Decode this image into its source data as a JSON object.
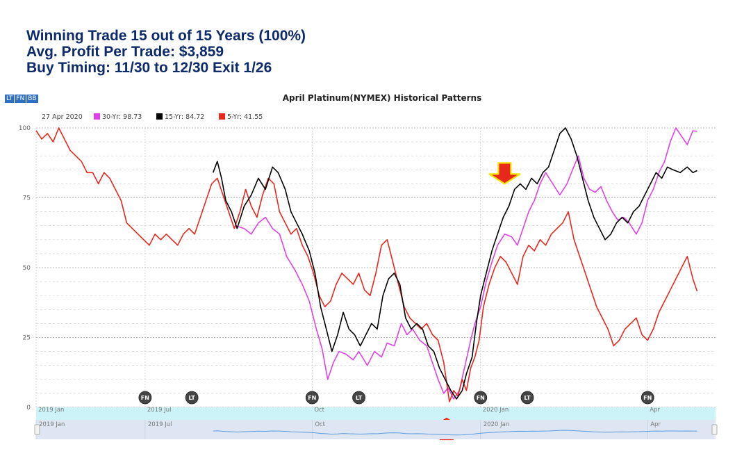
{
  "headline": {
    "line1": "Winning Trade 15 out of 15 Years (100%)",
    "line2": "Avg. Profit Per Trade: $3,859",
    "line3": "Buy Timing: 11/30 to 12/30 Exit 1/26"
  },
  "toolbar": {
    "lt": "LT",
    "fn": "FN",
    "bb": "BB"
  },
  "chart_data": {
    "type": "line",
    "title": "April Platinum(NYMEX) Historical Patterns",
    "date_label": "27 Apr 2020",
    "ylim": [
      0,
      100
    ],
    "yticks": [
      0,
      25,
      50,
      75,
      100
    ],
    "grid": true,
    "legend_position": "top-left",
    "x_domain": [
      0,
      480
    ],
    "x_ticks": [
      {
        "label": "2019 Jan",
        "x": 0
      },
      {
        "label": "2019 Jul",
        "x": 77
      },
      {
        "label": "Oct",
        "x": 195
      },
      {
        "label": "2020 Jan",
        "x": 314
      },
      {
        "label": "Apr",
        "x": 432
      }
    ],
    "navigator_ticks": [
      "2019 Jan",
      "2019 Jul",
      "Oct",
      "2020 Jan",
      "Apr"
    ],
    "markers": [
      {
        "label": "FN",
        "x": 77
      },
      {
        "label": "LT",
        "x": 110
      },
      {
        "label": "FN",
        "x": 195
      },
      {
        "label": "LT",
        "x": 228
      },
      {
        "label": "FN",
        "x": 314
      },
      {
        "label": "LT",
        "x": 347
      },
      {
        "label": "FN",
        "x": 432
      }
    ],
    "arrows": [
      {
        "direction": "down",
        "x": 331,
        "y": 80
      },
      {
        "direction": "up",
        "x": 290,
        "y": -4
      }
    ],
    "colors": {
      "30-Yr": "#e040e8",
      "15-Yr": "#000000",
      "5-Yr": "#e8271d",
      "navigator": "#5a9be0"
    },
    "series": [
      {
        "name": "30-Yr",
        "value": "98.73",
        "color": "#e040e8",
        "points": [
          [
            141,
            65
          ],
          [
            147,
            64
          ],
          [
            152,
            62
          ],
          [
            157,
            66
          ],
          [
            162,
            68
          ],
          [
            167,
            64
          ],
          [
            172,
            62
          ],
          [
            177,
            54
          ],
          [
            183,
            49
          ],
          [
            188,
            44
          ],
          [
            193,
            38
          ],
          [
            198,
            28
          ],
          [
            202,
            21
          ],
          [
            206,
            10
          ],
          [
            210,
            16
          ],
          [
            214,
            20
          ],
          [
            219,
            19
          ],
          [
            224,
            17
          ],
          [
            228,
            20
          ],
          [
            234,
            15
          ],
          [
            239,
            20
          ],
          [
            244,
            18
          ],
          [
            248,
            23
          ],
          [
            253,
            22
          ],
          [
            258,
            30
          ],
          [
            262,
            26
          ],
          [
            266,
            28
          ],
          [
            271,
            24
          ],
          [
            276,
            22
          ],
          [
            280,
            16
          ],
          [
            284,
            10
          ],
          [
            288,
            5
          ],
          [
            291,
            7
          ],
          [
            295,
            3
          ],
          [
            299,
            6
          ],
          [
            303,
            15
          ],
          [
            307,
            24
          ],
          [
            310,
            30
          ],
          [
            314,
            36
          ],
          [
            318,
            45
          ],
          [
            322,
            52
          ],
          [
            326,
            58
          ],
          [
            331,
            62
          ],
          [
            336,
            61
          ],
          [
            340,
            58
          ],
          [
            344,
            64
          ],
          [
            348,
            70
          ],
          [
            352,
            74
          ],
          [
            356,
            80
          ],
          [
            360,
            84
          ],
          [
            365,
            80
          ],
          [
            370,
            76
          ],
          [
            375,
            80
          ],
          [
            379,
            85
          ],
          [
            383,
            90
          ],
          [
            387,
            82
          ],
          [
            391,
            78
          ],
          [
            395,
            77
          ],
          [
            399,
            79
          ],
          [
            403,
            74
          ],
          [
            407,
            70
          ],
          [
            411,
            67
          ],
          [
            415,
            68
          ],
          [
            419,
            66
          ],
          [
            424,
            62
          ],
          [
            428,
            66
          ],
          [
            432,
            74
          ],
          [
            436,
            78
          ],
          [
            440,
            84
          ],
          [
            444,
            88
          ],
          [
            448,
            95
          ],
          [
            452,
            100
          ],
          [
            456,
            97
          ],
          [
            460,
            94
          ],
          [
            464,
            99
          ],
          [
            467,
            98.73
          ]
        ]
      },
      {
        "name": "15-Yr",
        "value": "84.72",
        "color": "#000000",
        "points": [
          [
            125,
            84
          ],
          [
            128,
            88
          ],
          [
            131,
            82
          ],
          [
            134,
            74
          ],
          [
            138,
            70
          ],
          [
            142,
            64
          ],
          [
            147,
            72
          ],
          [
            152,
            76
          ],
          [
            157,
            82
          ],
          [
            162,
            78
          ],
          [
            167,
            86
          ],
          [
            171,
            84
          ],
          [
            176,
            78
          ],
          [
            180,
            70
          ],
          [
            184,
            66
          ],
          [
            188,
            62
          ],
          [
            193,
            56
          ],
          [
            197,
            48
          ],
          [
            201,
            36
          ],
          [
            205,
            28
          ],
          [
            209,
            20
          ],
          [
            213,
            26
          ],
          [
            217,
            34
          ],
          [
            221,
            28
          ],
          [
            225,
            26
          ],
          [
            229,
            22
          ],
          [
            233,
            26
          ],
          [
            237,
            30
          ],
          [
            241,
            28
          ],
          [
            245,
            40
          ],
          [
            249,
            46
          ],
          [
            253,
            48
          ],
          [
            257,
            44
          ],
          [
            261,
            32
          ],
          [
            265,
            28
          ],
          [
            269,
            30
          ],
          [
            273,
            28
          ],
          [
            277,
            22
          ],
          [
            281,
            20
          ],
          [
            285,
            14
          ],
          [
            289,
            10
          ],
          [
            293,
            6
          ],
          [
            297,
            3
          ],
          [
            301,
            6
          ],
          [
            304,
            12
          ],
          [
            308,
            18
          ],
          [
            311,
            30
          ],
          [
            314,
            40
          ],
          [
            318,
            48
          ],
          [
            322,
            56
          ],
          [
            326,
            62
          ],
          [
            330,
            68
          ],
          [
            334,
            72
          ],
          [
            338,
            78
          ],
          [
            342,
            80
          ],
          [
            346,
            78
          ],
          [
            350,
            82
          ],
          [
            354,
            80
          ],
          [
            358,
            84
          ],
          [
            362,
            86
          ],
          [
            366,
            92
          ],
          [
            370,
            98
          ],
          [
            374,
            100
          ],
          [
            378,
            96
          ],
          [
            382,
            90
          ],
          [
            386,
            82
          ],
          [
            390,
            74
          ],
          [
            394,
            68
          ],
          [
            398,
            64
          ],
          [
            402,
            60
          ],
          [
            406,
            62
          ],
          [
            410,
            66
          ],
          [
            414,
            68
          ],
          [
            418,
            66
          ],
          [
            422,
            70
          ],
          [
            426,
            72
          ],
          [
            430,
            76
          ],
          [
            434,
            80
          ],
          [
            438,
            84
          ],
          [
            442,
            82
          ],
          [
            446,
            86
          ],
          [
            450,
            85
          ],
          [
            455,
            84
          ],
          [
            460,
            86
          ],
          [
            464,
            84
          ],
          [
            467,
            84.72
          ]
        ]
      },
      {
        "name": "5-Yr",
        "value": "41.55",
        "color": "#e8271d",
        "points": [
          [
            0,
            99
          ],
          [
            4,
            96
          ],
          [
            8,
            98
          ],
          [
            12,
            95
          ],
          [
            16,
            100
          ],
          [
            20,
            96
          ],
          [
            24,
            92
          ],
          [
            28,
            90
          ],
          [
            32,
            88
          ],
          [
            36,
            84
          ],
          [
            40,
            84
          ],
          [
            44,
            80
          ],
          [
            48,
            84
          ],
          [
            52,
            82
          ],
          [
            56,
            78
          ],
          [
            60,
            74
          ],
          [
            64,
            66
          ],
          [
            68,
            64
          ],
          [
            72,
            62
          ],
          [
            76,
            60
          ],
          [
            80,
            58
          ],
          [
            84,
            62
          ],
          [
            88,
            60
          ],
          [
            92,
            62
          ],
          [
            96,
            60
          ],
          [
            100,
            58
          ],
          [
            104,
            62
          ],
          [
            108,
            64
          ],
          [
            112,
            62
          ],
          [
            116,
            68
          ],
          [
            120,
            74
          ],
          [
            124,
            80
          ],
          [
            128,
            82
          ],
          [
            132,
            76
          ],
          [
            136,
            70
          ],
          [
            140,
            64
          ],
          [
            144,
            70
          ],
          [
            148,
            78
          ],
          [
            152,
            72
          ],
          [
            156,
            68
          ],
          [
            160,
            76
          ],
          [
            164,
            82
          ],
          [
            168,
            80
          ],
          [
            172,
            70
          ],
          [
            176,
            66
          ],
          [
            180,
            62
          ],
          [
            184,
            64
          ],
          [
            188,
            58
          ],
          [
            192,
            54
          ],
          [
            196,
            48
          ],
          [
            200,
            40
          ],
          [
            204,
            36
          ],
          [
            208,
            38
          ],
          [
            212,
            44
          ],
          [
            216,
            48
          ],
          [
            220,
            46
          ],
          [
            224,
            44
          ],
          [
            228,
            48
          ],
          [
            232,
            42
          ],
          [
            236,
            40
          ],
          [
            240,
            48
          ],
          [
            244,
            58
          ],
          [
            248,
            60
          ],
          [
            252,
            52
          ],
          [
            256,
            44
          ],
          [
            260,
            36
          ],
          [
            264,
            32
          ],
          [
            268,
            30
          ],
          [
            272,
            28
          ],
          [
            276,
            30
          ],
          [
            280,
            26
          ],
          [
            284,
            24
          ],
          [
            288,
            16
          ],
          [
            292,
            2
          ],
          [
            295,
            6
          ],
          [
            298,
            4
          ],
          [
            301,
            10
          ],
          [
            304,
            6
          ],
          [
            307,
            14
          ],
          [
            310,
            18
          ],
          [
            313,
            24
          ],
          [
            316,
            36
          ],
          [
            320,
            44
          ],
          [
            324,
            50
          ],
          [
            328,
            54
          ],
          [
            332,
            52
          ],
          [
            336,
            48
          ],
          [
            340,
            44
          ],
          [
            344,
            54
          ],
          [
            348,
            58
          ],
          [
            352,
            56
          ],
          [
            356,
            60
          ],
          [
            360,
            58
          ],
          [
            364,
            62
          ],
          [
            368,
            64
          ],
          [
            372,
            66
          ],
          [
            376,
            70
          ],
          [
            380,
            60
          ],
          [
            384,
            54
          ],
          [
            388,
            48
          ],
          [
            392,
            42
          ],
          [
            396,
            36
          ],
          [
            400,
            32
          ],
          [
            404,
            28
          ],
          [
            408,
            22
          ],
          [
            412,
            24
          ],
          [
            416,
            28
          ],
          [
            420,
            30
          ],
          [
            424,
            32
          ],
          [
            428,
            26
          ],
          [
            432,
            24
          ],
          [
            436,
            28
          ],
          [
            440,
            34
          ],
          [
            444,
            38
          ],
          [
            448,
            42
          ],
          [
            452,
            46
          ],
          [
            456,
            50
          ],
          [
            460,
            54
          ],
          [
            464,
            46
          ],
          [
            467,
            41.55
          ]
        ]
      }
    ]
  }
}
